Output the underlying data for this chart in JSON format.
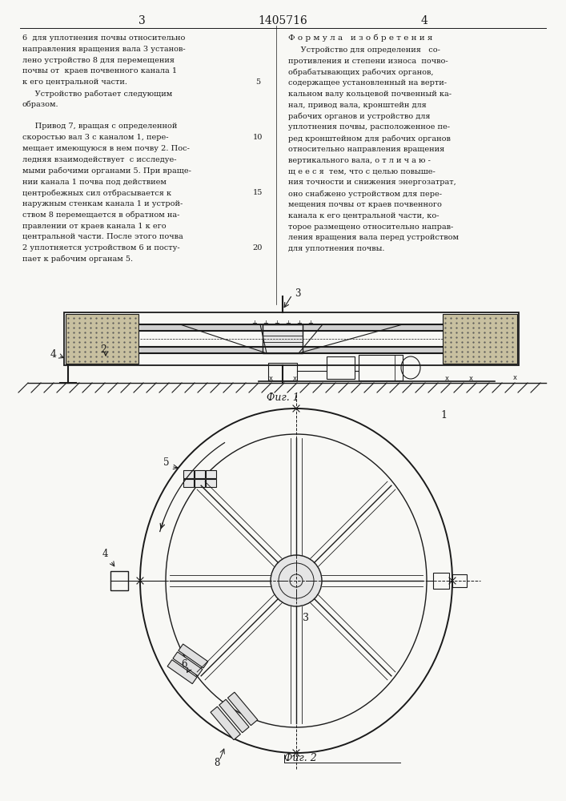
{
  "page_number_left": "3",
  "page_number_center": "1405716",
  "page_number_right": "4",
  "left_text": [
    "6  для уплотнения почвы относительно",
    "направления вращения вала 3 установ-",
    "лено устройство 8 для перемещения",
    "почвы от  краев почвенного канала 1",
    "к его центральной части.",
    "     Устройство работает следующим",
    "образом.",
    "",
    "     Привод 7, вращая с определенной",
    "скоростью вал 3 с каналом 1, пере-",
    "мещает имеющуюся в нем почву 2. Пос-",
    "ледняя взаимодействует  с исследуе-",
    "мыми рабочими органами 5. При враще-",
    "нии канала 1 почва под действием",
    "центробежных сил отбрасывается к",
    "наружным стенкам канала 1 и устрой-",
    "ством 8 перемещается в обратном на-",
    "правлении от краев канала 1 к его",
    "центральной части. После этого почва",
    "2 уплотняется устройством 6 и посту-",
    "пает к рабочим органам 5."
  ],
  "right_text_header": "Ф о р м у л а   и з о б р е т е н и я",
  "right_text": [
    "     Устройство для определения   со-",
    "противления и степени износа  почво-",
    "обрабатывающих рабочих органов,",
    "содержащее установленный на верти-",
    "кальном валу кольцевой почвенный ка-",
    "нал, привод вала, кронштейн для",
    "рабочих органов и устройство для",
    "уплотнения почвы, расположенное пе-",
    "ред кронштейном для рабочих органов",
    "относительно направления вращения",
    "вертикального вала, о т л и ч а ю -",
    "щ е е с я  тем, что с целью повыше-",
    "ния точности и снижения энергозатрат,",
    "оно снабжено устройством для пере-",
    "мещения почвы от краев почвенного",
    "канала к его центральной части, ко-",
    "торое размещено относительно направ-",
    "ления вращения вала перед устройством",
    "для уплотнения почвы."
  ],
  "fig1_label": "Фиг. 1",
  "fig2_label": "Фиг. 2",
  "bg_color": "#f8f8f5",
  "line_color": "#1a1a1a",
  "text_color": "#1a1a1a"
}
